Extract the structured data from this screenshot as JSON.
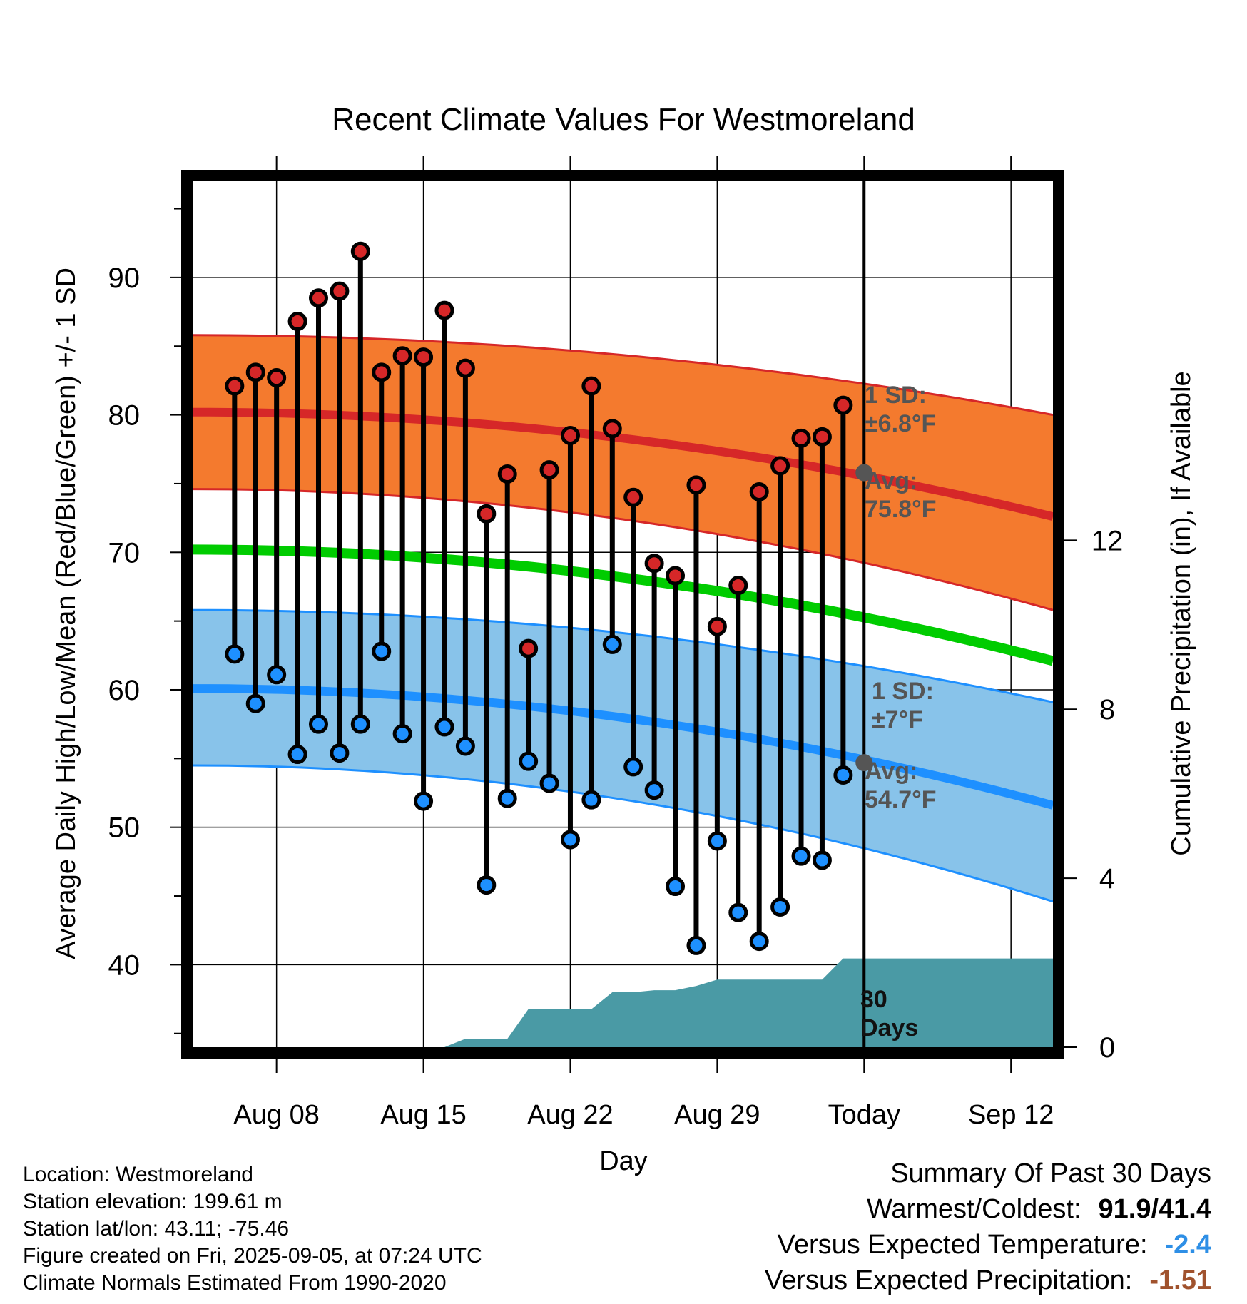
{
  "chart_data": {
    "type": "line",
    "title": "Recent Climate Values For Westmoreland",
    "xlabel": "Day",
    "ylabel": "Average Daily High/Low/Mean (Red/Blue/Green) +/- 1 SD",
    "y2label": "Cumulative Precipitation (in), If Available",
    "ylim": [
      34,
      97
    ],
    "y2lim": [
      0,
      20.5
    ],
    "yticks": [
      "40",
      "50",
      "60",
      "70",
      "80",
      "90"
    ],
    "y2ticks": [
      "0",
      "4",
      "8",
      "12"
    ],
    "xlim": [
      "2025-08-04",
      "2025-09-14"
    ],
    "xticks": [
      {
        "date": "2025-08-08",
        "label": "Aug 08"
      },
      {
        "date": "2025-08-15",
        "label": "Aug 15"
      },
      {
        "date": "2025-08-22",
        "label": "Aug 22"
      },
      {
        "date": "2025-08-29",
        "label": "Aug 29"
      },
      {
        "date": "2025-09-05",
        "label": "Today"
      },
      {
        "date": "2025-09-12",
        "label": "Sep 12"
      }
    ],
    "grid": true,
    "days": [
      "2025-08-06",
      "2025-08-07",
      "2025-08-08",
      "2025-08-09",
      "2025-08-10",
      "2025-08-11",
      "2025-08-12",
      "2025-08-13",
      "2025-08-14",
      "2025-08-15",
      "2025-08-16",
      "2025-08-17",
      "2025-08-18",
      "2025-08-19",
      "2025-08-20",
      "2025-08-21",
      "2025-08-22",
      "2025-08-23",
      "2025-08-24",
      "2025-08-25",
      "2025-08-26",
      "2025-08-27",
      "2025-08-28",
      "2025-08-29",
      "2025-08-30",
      "2025-08-31",
      "2025-09-01",
      "2025-09-02",
      "2025-09-03",
      "2025-09-04"
    ],
    "daily_high": [
      82.1,
      83.1,
      82.7,
      86.8,
      88.5,
      89.0,
      91.9,
      83.1,
      84.3,
      84.2,
      87.6,
      83.4,
      72.8,
      75.7,
      63.0,
      76.0,
      78.5,
      82.1,
      79.0,
      74.0,
      69.2,
      68.3,
      74.9,
      64.6,
      67.6,
      74.4,
      76.3,
      78.3,
      78.4,
      80.7
    ],
    "daily_low": [
      62.6,
      59.0,
      61.1,
      55.3,
      57.5,
      55.4,
      57.5,
      62.8,
      56.8,
      51.9,
      57.3,
      55.9,
      45.8,
      52.1,
      54.8,
      53.2,
      49.1,
      52.0,
      63.3,
      54.4,
      52.7,
      45.7,
      41.4,
      49.0,
      43.8,
      41.7,
      44.2,
      47.9,
      47.6,
      53.8
    ],
    "normal_curves": {
      "dates": [
        "2025-08-04",
        "2025-09-14"
      ],
      "high_mean": [
        80.2,
        72.6
      ],
      "high_sd_band": [
        [
          74.6,
          85.8
        ],
        [
          65.8,
          80.0
        ]
      ],
      "low_mean": [
        60.1,
        51.6
      ],
      "low_sd_band": [
        [
          54.5,
          65.8
        ],
        [
          44.6,
          59.1
        ]
      ],
      "overall_mean": [
        70.2,
        62.1
      ]
    },
    "cumulative_precip": {
      "dates": [
        "2025-08-04",
        "2025-08-14",
        "2025-08-15",
        "2025-08-16",
        "2025-08-17",
        "2025-08-18",
        "2025-08-19",
        "2025-08-20",
        "2025-08-21",
        "2025-08-22",
        "2025-08-23",
        "2025-08-24",
        "2025-08-25",
        "2025-08-26",
        "2025-08-27",
        "2025-08-28",
        "2025-08-29",
        "2025-08-30",
        "2025-08-31",
        "2025-09-01",
        "2025-09-02",
        "2025-09-03",
        "2025-09-04",
        "2025-09-05",
        "2025-09-14"
      ],
      "values": [
        0,
        0,
        0,
        0,
        0.2,
        0.2,
        0.2,
        0.9,
        0.9,
        0.9,
        0.9,
        1.3,
        1.3,
        1.35,
        1.35,
        1.45,
        1.6,
        1.6,
        1.6,
        1.6,
        1.6,
        1.6,
        2.1,
        2.1,
        2.1
      ]
    },
    "today_date": "2025-09-05",
    "annotations": {
      "high_sd_label": "1 SD:",
      "high_sd_value": "±6.8°F",
      "high_avg_label": "Avg:",
      "high_avg_value": "75.8°F",
      "high_avg_today": 75.8,
      "low_sd_label": "1 SD:",
      "low_sd_value": "±7°F",
      "low_avg_label": "Avg:",
      "low_avg_value": "54.7°F",
      "low_avg_today": 54.7,
      "precip_label_1": "30",
      "precip_label_2": "Days"
    },
    "colors": {
      "high_band": "#f47a2e",
      "high_line": "#d62728",
      "low_band": "#88c3ea",
      "low_line": "#1e90ff",
      "mean_line": "#00cc00",
      "precip_fill": "#4a9aa5",
      "high_dot": "#d62728",
      "low_dot": "#1e90ff",
      "annotation_text": "#555555"
    }
  },
  "info": {
    "location": "Location: Westmoreland",
    "elevation": "Station elevation: 199.61 m",
    "latlon": "Station lat/lon: 43.11; -75.46",
    "created": "Figure created on Fri, 2025-09-05, at 07:24 UTC",
    "normals": "Climate Normals Estimated From 1990-2020"
  },
  "summary": {
    "title": "Summary Of Past 30 Days",
    "warm_cold_label": "Warmest/Coldest:",
    "warm_cold_value": "91.9/41.4",
    "temp_label": "Versus Expected Temperature:",
    "temp_value": "-2.4",
    "precip_label": "Versus Expected Precipitation:",
    "precip_value": "-1.51"
  }
}
